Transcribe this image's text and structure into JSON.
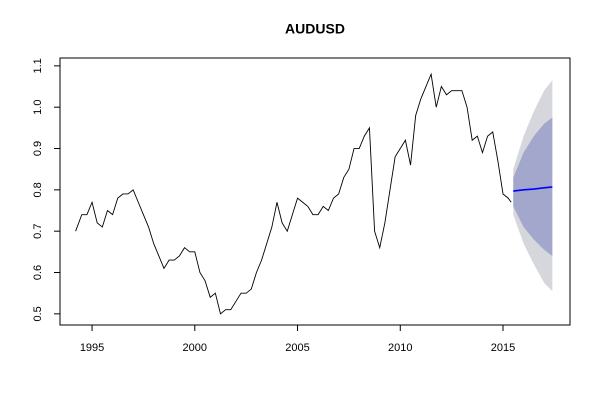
{
  "chart_data": {
    "type": "line",
    "title": "AUDUSD",
    "xlim": [
      1993.44,
      2018.26
    ],
    "ylim": [
      0.473,
      1.119
    ],
    "xticks": [
      1995,
      2000,
      2005,
      2010,
      2015
    ],
    "yticks": [
      0.5,
      0.6,
      0.7,
      0.8,
      0.9,
      {
        "value": 1.0,
        "label": "1.0"
      },
      1.1
    ],
    "series": [
      {
        "color": "#000000",
        "x": [
          1994.2,
          1994.5,
          1994.75,
          1995.0,
          1995.25,
          1995.5,
          1995.75,
          1996.0,
          1996.25,
          1996.5,
          1996.75,
          1997.0,
          1997.25,
          1997.5,
          1997.75,
          1998.0,
          1998.25,
          1998.5,
          1998.75,
          1999.0,
          1999.25,
          1999.5,
          1999.75,
          2000.0,
          2000.25,
          2000.5,
          2000.75,
          2001.0,
          2001.25,
          2001.5,
          2001.75,
          2002.0,
          2002.25,
          2002.5,
          2002.75,
          2003.0,
          2003.25,
          2003.5,
          2003.75,
          2004.0,
          2004.25,
          2004.5,
          2004.75,
          2005.0,
          2005.25,
          2005.5,
          2005.75,
          2006.0,
          2006.25,
          2006.5,
          2006.75,
          2007.0,
          2007.25,
          2007.5,
          2007.75,
          2008.0,
          2008.25,
          2008.5,
          2008.75,
          2009.0,
          2009.25,
          2009.5,
          2009.75,
          2010.0,
          2010.25,
          2010.5,
          2010.75,
          2011.0,
          2011.25,
          2011.5,
          2011.75,
          2012.0,
          2012.25,
          2012.5,
          2012.75,
          2013.0,
          2013.25,
          2013.5,
          2013.75,
          2014.0,
          2014.25,
          2014.5,
          2014.75,
          2015.0,
          2015.25,
          2015.4
        ],
        "values": [
          0.7,
          0.74,
          0.74,
          0.77,
          0.72,
          0.71,
          0.75,
          0.74,
          0.78,
          0.79,
          0.79,
          0.8,
          0.77,
          0.74,
          0.71,
          0.67,
          0.64,
          0.61,
          0.63,
          0.63,
          0.64,
          0.66,
          0.65,
          0.65,
          0.6,
          0.58,
          0.54,
          0.55,
          0.5,
          0.51,
          0.51,
          0.53,
          0.55,
          0.55,
          0.56,
          0.6,
          0.63,
          0.67,
          0.71,
          0.77,
          0.72,
          0.7,
          0.74,
          0.78,
          0.77,
          0.76,
          0.74,
          0.74,
          0.76,
          0.75,
          0.78,
          0.79,
          0.83,
          0.85,
          0.9,
          0.9,
          0.93,
          0.95,
          0.7,
          0.66,
          0.72,
          0.8,
          0.88,
          0.9,
          0.92,
          0.86,
          0.98,
          1.02,
          1.05,
          1.08,
          1.0,
          1.05,
          1.03,
          1.04,
          1.04,
          1.04,
          1.0,
          0.92,
          0.93,
          0.89,
          0.93,
          0.94,
          0.87,
          0.79,
          0.78,
          0.77
        ]
      }
    ],
    "forecast": {
      "x": [
        2015.5,
        2016.0,
        2016.5,
        2017.0,
        2017.4
      ],
      "mean": [
        0.797,
        0.8,
        0.802,
        0.805,
        0.807
      ],
      "lo80": [
        0.76,
        0.71,
        0.68,
        0.655,
        0.64
      ],
      "hi80": [
        0.83,
        0.89,
        0.93,
        0.96,
        0.975
      ],
      "lo95": [
        0.74,
        0.67,
        0.62,
        0.575,
        0.555
      ],
      "hi95": [
        0.85,
        0.93,
        0.99,
        1.04,
        1.065
      ],
      "mean_color": "#0000ff",
      "color80": "#a3a7cc",
      "color95": "#d6d6dd"
    }
  }
}
